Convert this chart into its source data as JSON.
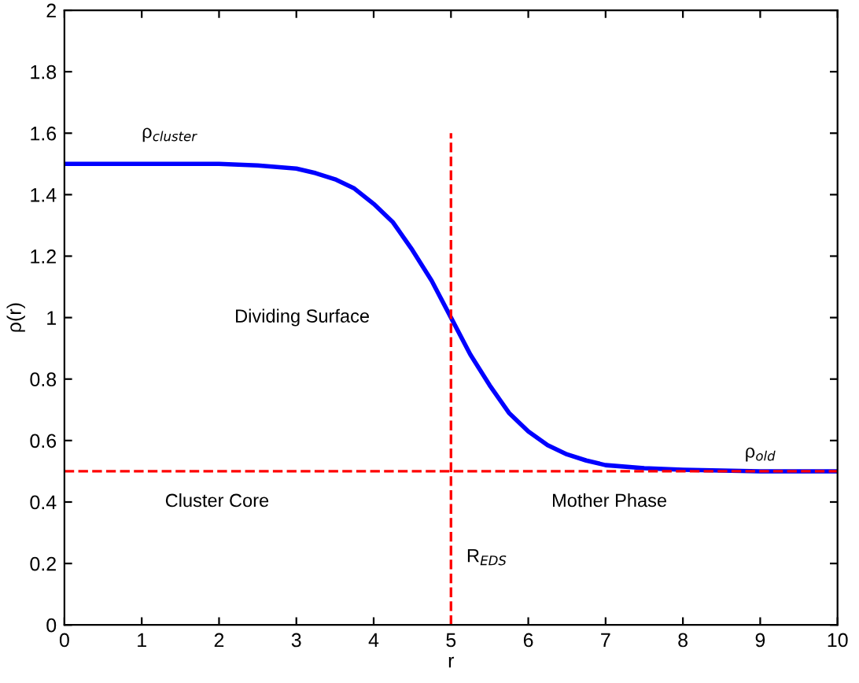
{
  "chart_data": {
    "type": "line",
    "xlabel": "r",
    "ylabel": "ρ(r)",
    "series": [
      {
        "color": "#0000ff",
        "line_style": "solid",
        "x": [
          0,
          1,
          2,
          2.5,
          3,
          3.25,
          3.5,
          3.75,
          4,
          4.25,
          4.5,
          4.75,
          5,
          5.25,
          5.5,
          5.75,
          6,
          6.25,
          6.5,
          6.75,
          7,
          7.5,
          8,
          9,
          10
        ],
        "values": [
          1.5,
          1.5,
          1.5,
          1.495,
          1.485,
          1.47,
          1.45,
          1.42,
          1.37,
          1.31,
          1.22,
          1.12,
          1.0,
          0.88,
          0.78,
          0.69,
          0.63,
          0.585,
          0.555,
          0.535,
          0.52,
          0.51,
          0.505,
          0.5,
          0.5
        ]
      },
      {
        "color": "#ff0000",
        "line_style": "dashed",
        "x": [
          5,
          5
        ],
        "values": [
          0,
          1.6
        ]
      }
    ],
    "ref_lines": [
      {
        "axis": "y",
        "value": 0.5,
        "color": "#ff0000",
        "line_style": "dashed"
      }
    ],
    "annotations": [
      "ρ$_{cluster}$",
      "Dividing Surface",
      "ρ$_{old}$",
      "Cluster Core",
      "Mother Phase",
      "R$_{EDS}$"
    ],
    "xlim": [
      0,
      10
    ],
    "xticks": [
      0,
      1,
      2,
      3,
      4,
      5,
      6,
      7,
      8,
      9,
      10
    ],
    "ylim": [
      0,
      2
    ],
    "yticks": [
      0,
      0.2,
      0.4,
      0.6,
      0.8,
      1,
      1.2,
      1.4,
      1.6,
      1.8,
      2
    ],
    "grid": false,
    "legend": false,
    "marker": "none"
  }
}
